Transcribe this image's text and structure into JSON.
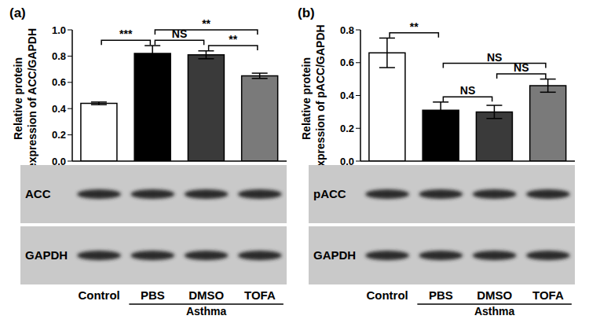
{
  "chart_data": [
    {
      "type": "bar",
      "panel": "(a)",
      "ylabel": [
        "Relative protein",
        "expression of ACC/GAPDH"
      ],
      "categories": [
        "Control",
        "PBS",
        "DMSO",
        "TOFA"
      ],
      "values": [
        0.44,
        0.82,
        0.81,
        0.65
      ],
      "errors": [
        0.01,
        0.06,
        0.03,
        0.02
      ],
      "colors": [
        "#ffffff",
        "#000000",
        "#3a3a3a",
        "#7a7a7a"
      ],
      "ylim": [
        0,
        1
      ],
      "yticks": [
        {
          "value": 0,
          "label": "0.0"
        },
        0.2,
        0.4,
        0.6,
        0.8,
        {
          "value": 1,
          "label": "1.0"
        }
      ],
      "annotations": [
        {
          "text": "***",
          "between": [
            "Control",
            "PBS"
          ]
        },
        {
          "text": "NS",
          "between": [
            "PBS",
            "DMSO"
          ]
        },
        {
          "text": "**",
          "between": [
            "DMSO",
            "TOFA"
          ]
        },
        {
          "text": "**",
          "between": [
            "PBS",
            "TOFA"
          ]
        }
      ],
      "blot_labels": [
        "ACC",
        "GAPDH"
      ],
      "group_label": "Asthma",
      "group_categories": [
        "PBS",
        "DMSO",
        "TOFA"
      ]
    },
    {
      "type": "bar",
      "panel": "(b)",
      "ylabel": [
        "Relative protein",
        "expression of pACC/GAPDH"
      ],
      "categories": [
        "Control",
        "PBS",
        "DMSO",
        "TOFA"
      ],
      "values": [
        0.66,
        0.31,
        0.3,
        0.46
      ],
      "errors": [
        0.09,
        0.05,
        0.04,
        0.04
      ],
      "colors": [
        "#ffffff",
        "#000000",
        "#3a3a3a",
        "#7a7a7a"
      ],
      "ylim": [
        0,
        0.8
      ],
      "yticks": [
        {
          "value": 0,
          "label": "0.0"
        },
        0.2,
        0.4,
        0.6,
        0.8
      ],
      "annotations": [
        {
          "text": "**",
          "between": [
            "Control",
            "PBS"
          ]
        },
        {
          "text": "NS",
          "between": [
            "PBS",
            "DMSO"
          ]
        },
        {
          "text": "NS",
          "between": [
            "DMSO",
            "TOFA"
          ]
        },
        {
          "text": "NS",
          "between": [
            "PBS",
            "TOFA"
          ]
        }
      ],
      "blot_labels": [
        "pACC",
        "GAPDH"
      ],
      "group_label": "Asthma",
      "group_categories": [
        "PBS",
        "DMSO",
        "TOFA"
      ]
    }
  ]
}
